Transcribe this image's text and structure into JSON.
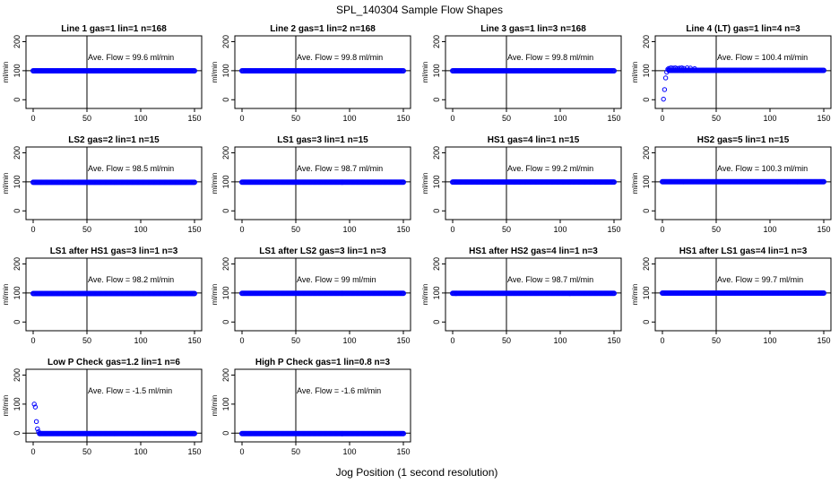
{
  "title": "SPL_140304  Sample Flow Shapes",
  "xlabel": "Jog Position (1 second resolution)",
  "colors": {
    "points": "#0000ff",
    "axes": "#000000"
  },
  "chart_data": [
    {
      "type": "scatter",
      "title": "Line 1 gas=1 lin=1 n=168",
      "ylabel": "ml/min",
      "annotation": "Ave. Flow = 99.6  ml/min",
      "xlim": [
        0,
        150
      ],
      "ylim": [
        -30,
        220
      ],
      "xticks": [
        0,
        50,
        100,
        150
      ],
      "yticks": [
        0,
        100,
        200
      ],
      "vline": 50,
      "hline": 100,
      "x_range": [
        0,
        150
      ],
      "steady_y": 99.6,
      "initial_points": []
    },
    {
      "type": "scatter",
      "title": "Line 2 gas=1 lin=2 n=168",
      "ylabel": "ml/min",
      "annotation": "Ave. Flow = 99.8  ml/min",
      "xlim": [
        0,
        150
      ],
      "ylim": [
        -30,
        220
      ],
      "xticks": [
        0,
        50,
        100,
        150
      ],
      "yticks": [
        0,
        100,
        200
      ],
      "vline": 50,
      "hline": 100,
      "x_range": [
        0,
        150
      ],
      "steady_y": 99.8,
      "initial_points": []
    },
    {
      "type": "scatter",
      "title": "Line 3 gas=1 lin=3 n=168",
      "ylabel": "ml/min",
      "annotation": "Ave. Flow = 99.8  ml/min",
      "xlim": [
        0,
        150
      ],
      "ylim": [
        -30,
        220
      ],
      "xticks": [
        0,
        50,
        100,
        150
      ],
      "yticks": [
        0,
        100,
        200
      ],
      "vline": 50,
      "hline": 100,
      "x_range": [
        0,
        150
      ],
      "steady_y": 99.8,
      "initial_points": []
    },
    {
      "type": "scatter",
      "title": "Line 4 (LT) gas=1 lin=4 n=3",
      "ylabel": "ml/min",
      "annotation": "Ave. Flow = 100.4  ml/min",
      "xlim": [
        0,
        150
      ],
      "ylim": [
        -30,
        220
      ],
      "xticks": [
        0,
        50,
        100,
        150
      ],
      "yticks": [
        0,
        100,
        200
      ],
      "vline": 50,
      "hline": 100,
      "x_range": [
        6,
        150
      ],
      "steady_y": 101,
      "initial_points": [
        [
          1,
          2
        ],
        [
          2,
          35
        ],
        [
          3,
          75
        ],
        [
          4,
          95
        ],
        [
          5,
          105
        ],
        [
          6,
          108
        ],
        [
          8,
          110
        ],
        [
          10,
          109
        ],
        [
          12,
          110
        ],
        [
          14,
          108
        ],
        [
          16,
          109
        ],
        [
          18,
          110
        ],
        [
          20,
          108
        ],
        [
          23,
          110
        ],
        [
          26,
          109
        ],
        [
          30,
          107
        ]
      ]
    },
    {
      "type": "scatter",
      "title": "LS2 gas=2 lin=1 n=15",
      "ylabel": "ml/min",
      "annotation": "Ave. Flow = 98.5  ml/min",
      "xlim": [
        0,
        150
      ],
      "ylim": [
        -30,
        220
      ],
      "xticks": [
        0,
        50,
        100,
        150
      ],
      "yticks": [
        0,
        100,
        200
      ],
      "vline": 50,
      "hline": 100,
      "x_range": [
        0,
        150
      ],
      "steady_y": 98.5,
      "initial_points": []
    },
    {
      "type": "scatter",
      "title": "LS1 gas=3 lin=1 n=15",
      "ylabel": "ml/min",
      "annotation": "Ave. Flow = 98.7  ml/min",
      "xlim": [
        0,
        150
      ],
      "ylim": [
        -30,
        220
      ],
      "xticks": [
        0,
        50,
        100,
        150
      ],
      "yticks": [
        0,
        100,
        200
      ],
      "vline": 50,
      "hline": 100,
      "x_range": [
        0,
        150
      ],
      "steady_y": 98.7,
      "initial_points": []
    },
    {
      "type": "scatter",
      "title": "HS1 gas=4 lin=1 n=15",
      "ylabel": "ml/min",
      "annotation": "Ave. Flow = 99.2  ml/min",
      "xlim": [
        0,
        150
      ],
      "ylim": [
        -30,
        220
      ],
      "xticks": [
        0,
        50,
        100,
        150
      ],
      "yticks": [
        0,
        100,
        200
      ],
      "vline": 50,
      "hline": 100,
      "x_range": [
        0,
        150
      ],
      "steady_y": 99.2,
      "initial_points": []
    },
    {
      "type": "scatter",
      "title": "HS2 gas=5 lin=1 n=15",
      "ylabel": "ml/min",
      "annotation": "Ave. Flow = 100.3  ml/min",
      "xlim": [
        0,
        150
      ],
      "ylim": [
        -30,
        220
      ],
      "xticks": [
        0,
        50,
        100,
        150
      ],
      "yticks": [
        0,
        100,
        200
      ],
      "vline": 50,
      "hline": 100,
      "x_range": [
        0,
        150
      ],
      "steady_y": 100.3,
      "initial_points": []
    },
    {
      "type": "scatter",
      "title": "LS1 after HS1 gas=3 lin=1 n=3",
      "ylabel": "ml/min",
      "annotation": "Ave. Flow = 98.2  ml/min",
      "xlim": [
        0,
        150
      ],
      "ylim": [
        -30,
        220
      ],
      "xticks": [
        0,
        50,
        100,
        150
      ],
      "yticks": [
        0,
        100,
        200
      ],
      "vline": 50,
      "hline": 100,
      "x_range": [
        0,
        150
      ],
      "steady_y": 98.2,
      "initial_points": []
    },
    {
      "type": "scatter",
      "title": "LS1 after LS2 gas=3 lin=1 n=3",
      "ylabel": "ml/min",
      "annotation": "Ave. Flow = 99  ml/min",
      "xlim": [
        0,
        150
      ],
      "ylim": [
        -30,
        220
      ],
      "xticks": [
        0,
        50,
        100,
        150
      ],
      "yticks": [
        0,
        100,
        200
      ],
      "vline": 50,
      "hline": 100,
      "x_range": [
        0,
        150
      ],
      "steady_y": 99,
      "initial_points": []
    },
    {
      "type": "scatter",
      "title": "HS1 after HS2 gas=4 lin=1 n=3",
      "ylabel": "ml/min",
      "annotation": "Ave. Flow = 98.7  ml/min",
      "xlim": [
        0,
        150
      ],
      "ylim": [
        -30,
        220
      ],
      "xticks": [
        0,
        50,
        100,
        150
      ],
      "yticks": [
        0,
        100,
        200
      ],
      "vline": 50,
      "hline": 100,
      "x_range": [
        0,
        150
      ],
      "steady_y": 98.7,
      "initial_points": []
    },
    {
      "type": "scatter",
      "title": "HS1 after LS1 gas=4 lin=1 n=3",
      "ylabel": "ml/min",
      "annotation": "Ave. Flow = 99.7  ml/min",
      "xlim": [
        0,
        150
      ],
      "ylim": [
        -30,
        220
      ],
      "xticks": [
        0,
        50,
        100,
        150
      ],
      "yticks": [
        0,
        100,
        200
      ],
      "vline": 50,
      "hline": 100,
      "x_range": [
        0,
        150
      ],
      "steady_y": 99.7,
      "initial_points": []
    },
    {
      "type": "scatter",
      "title": "Low P Check gas=1.2 lin=1 n=6",
      "ylabel": "ml/min",
      "annotation": "Ave. Flow = -1.5  ml/min",
      "xlim": [
        0,
        150
      ],
      "ylim": [
        -30,
        220
      ],
      "xticks": [
        0,
        50,
        100,
        150
      ],
      "yticks": [
        0,
        100,
        200
      ],
      "vline": 50,
      "hline": 0,
      "x_range": [
        6,
        150
      ],
      "steady_y": -1.5,
      "initial_points": [
        [
          1,
          100
        ],
        [
          2,
          90
        ],
        [
          3,
          40
        ],
        [
          4,
          15
        ],
        [
          5,
          5
        ]
      ]
    },
    {
      "type": "scatter",
      "title": "High P Check gas=1 lin=0.8 n=3",
      "ylabel": "ml/min",
      "annotation": "Ave. Flow = -1.6  ml/min",
      "xlim": [
        0,
        150
      ],
      "ylim": [
        -30,
        220
      ],
      "xticks": [
        0,
        50,
        100,
        150
      ],
      "yticks": [
        0,
        100,
        200
      ],
      "vline": 50,
      "hline": 0,
      "x_range": [
        0,
        150
      ],
      "steady_y": -1.6,
      "initial_points": []
    }
  ]
}
